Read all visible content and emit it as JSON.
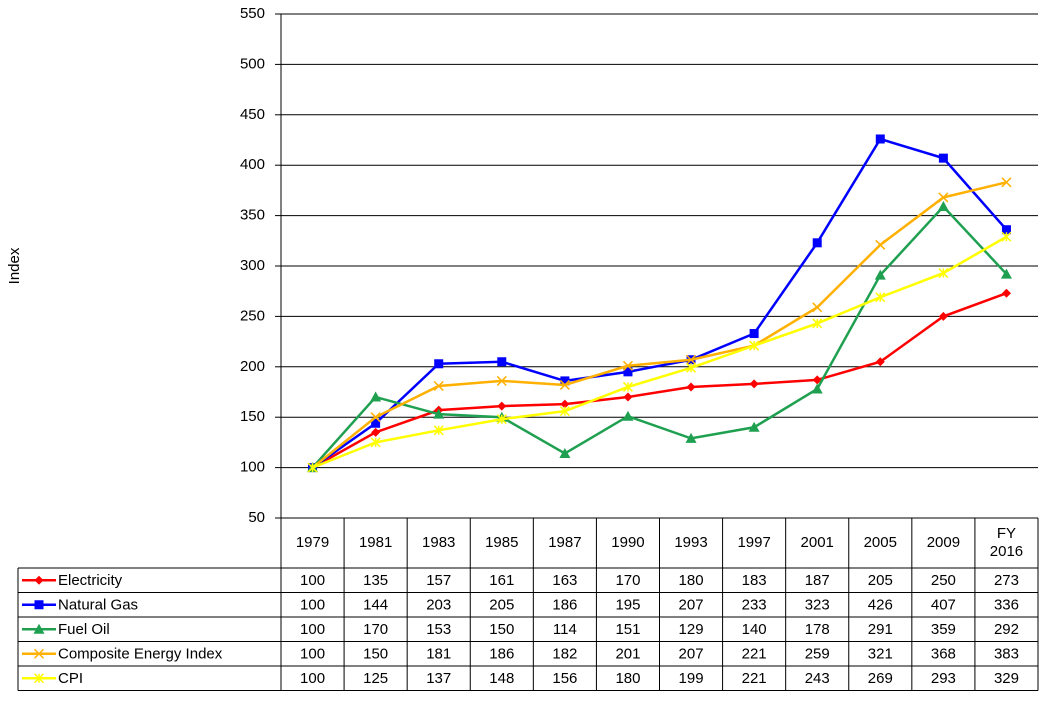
{
  "chart_data": {
    "type": "line",
    "y_label": "Index",
    "categories": [
      "1979",
      "1981",
      "1983",
      "1985",
      "1987",
      "1990",
      "1993",
      "1997",
      "2001",
      "2005",
      "2009",
      "FY 2016"
    ],
    "ylim": [
      50,
      550
    ],
    "yticks": [
      50,
      100,
      150,
      200,
      250,
      300,
      350,
      400,
      450,
      500,
      550
    ],
    "grid": true,
    "series": [
      {
        "name": "Electricity",
        "color": "#ff0000",
        "marker": "diamond",
        "values": [
          100,
          135,
          157,
          161,
          163,
          170,
          180,
          183,
          187,
          205,
          250,
          273
        ]
      },
      {
        "name": "Natural Gas",
        "color": "#0000ff",
        "marker": "square",
        "values": [
          100,
          144,
          203,
          205,
          186,
          195,
          207,
          233,
          323,
          426,
          407,
          336
        ]
      },
      {
        "name": "Fuel Oil",
        "color": "#1fa050",
        "marker": "triangle",
        "values": [
          100,
          170,
          153,
          150,
          114,
          151,
          129,
          140,
          178,
          291,
          359,
          292
        ]
      },
      {
        "name": "Composite Energy Index",
        "color": "#ffb000",
        "marker": "x",
        "values": [
          100,
          150,
          181,
          186,
          182,
          201,
          207,
          221,
          259,
          321,
          368,
          383
        ]
      },
      {
        "name": "CPI",
        "color": "#ffff00",
        "marker": "star",
        "values": [
          100,
          125,
          137,
          148,
          156,
          180,
          199,
          221,
          243,
          269,
          293,
          329
        ]
      }
    ]
  }
}
